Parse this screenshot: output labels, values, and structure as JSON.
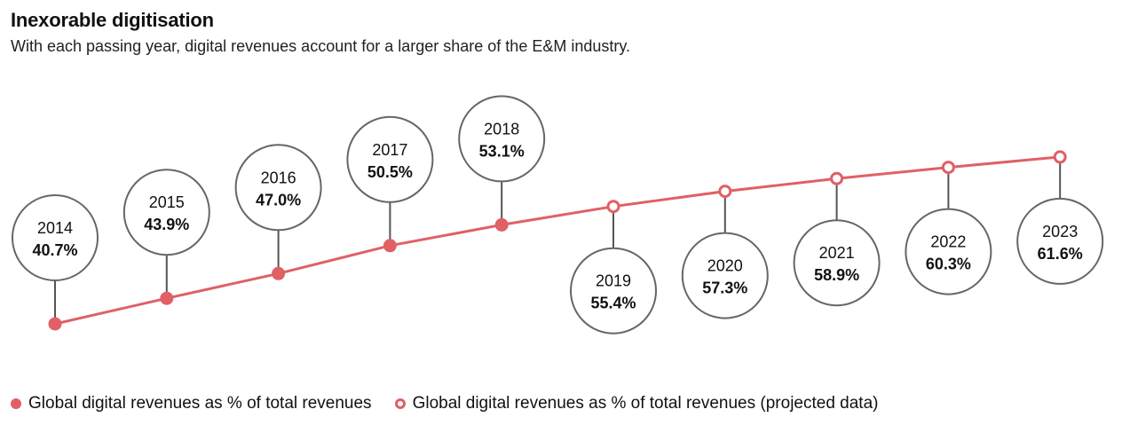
{
  "header": {
    "title": "Inexorable digitisation",
    "subtitle": "With each passing year, digital revenues account for a larger share of the E&M industry."
  },
  "legend": {
    "actual_label": "Global digital revenues as % of total revenues",
    "projected_label": "Global digital revenues as % of total revenues (projected data)"
  },
  "colors": {
    "line": "#e06066",
    "bubble_stroke": "#666666",
    "stem": "#555555"
  },
  "chart_data": {
    "type": "line",
    "title": "Inexorable digitisation",
    "subtitle": "With each passing year, digital revenues account for a larger share of the E&M industry.",
    "x": [
      "2014",
      "2015",
      "2016",
      "2017",
      "2018",
      "2019",
      "2020",
      "2021",
      "2022",
      "2023"
    ],
    "series": [
      {
        "name": "Global digital revenues as % of total revenues",
        "values": [
          40.7,
          43.9,
          47.0,
          50.5,
          53.1,
          55.4,
          57.3,
          58.9,
          60.3,
          61.6
        ],
        "projected": [
          false,
          false,
          false,
          false,
          false,
          true,
          true,
          true,
          true,
          true
        ]
      }
    ],
    "point_labels": [
      "40.7%",
      "43.9%",
      "47.0%",
      "50.5%",
      "53.1%",
      "55.4%",
      "57.3%",
      "58.9%",
      "60.3%",
      "61.6%"
    ],
    "label_placement": [
      "above",
      "above",
      "above",
      "above",
      "above",
      "below",
      "below",
      "below",
      "below",
      "below"
    ],
    "legend_position": "bottom-left",
    "grid": false
  }
}
